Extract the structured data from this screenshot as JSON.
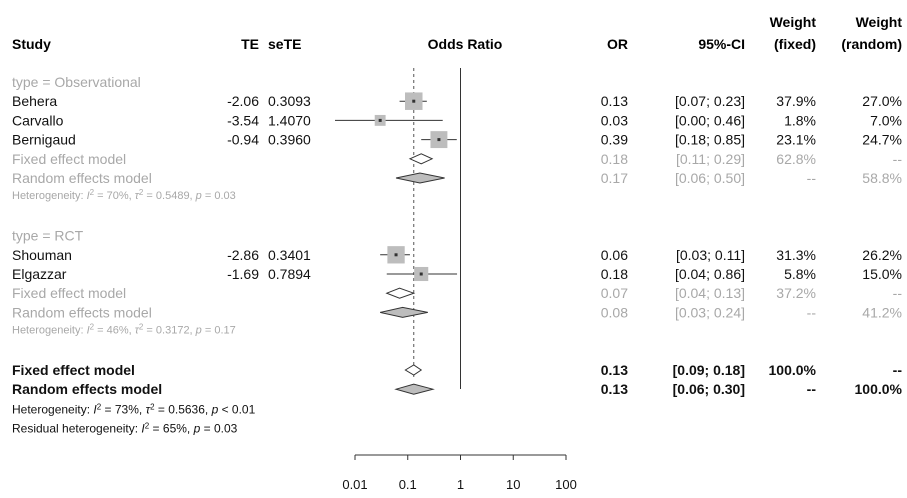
{
  "colors": {
    "main": "#111111",
    "subgroup": "#a8a8a8",
    "box": "#bdbdbd",
    "line": "#333333"
  },
  "header": {
    "study": "Study",
    "te": "TE",
    "sete": "seTE",
    "effect": "Odds Ratio",
    "or": "OR",
    "ci": "95%-CI",
    "weight_fixed": [
      "Weight",
      "(fixed)"
    ],
    "weight_random": [
      "Weight",
      "(random)"
    ]
  },
  "chart_data": {
    "type": "forest",
    "xlabel": "Odds Ratio",
    "x_scale": "log",
    "x_ticks": [
      "0.01",
      "0.1",
      "1",
      "10",
      "100"
    ],
    "x_tick_values": [
      0.01,
      0.1,
      1,
      10,
      100
    ],
    "x_range": [
      0.01,
      100
    ],
    "null_line": 1,
    "pooled_line": 0.13,
    "rows": [
      {
        "kind": "group",
        "label": "type = Observational"
      },
      {
        "kind": "study",
        "label": "Behera",
        "te": "-2.06",
        "sete": "0.3093",
        "or": 0.13,
        "lo": 0.07,
        "hi": 0.23,
        "or_text": "0.13",
        "ci_text": "[0.07; 0.23]",
        "wf": "37.9%",
        "wr": "27.0%",
        "weight": 27.0
      },
      {
        "kind": "study",
        "label": "Carvallo",
        "te": "-3.54",
        "sete": "1.4070",
        "or": 0.03,
        "lo": 0.002,
        "hi": 0.46,
        "or_text": "0.03",
        "ci_text": "[0.00; 0.46]",
        "wf": "1.8%",
        "wr": "7.0%",
        "weight": 7.0
      },
      {
        "kind": "study",
        "label": "Bernigaud",
        "te": "-0.94",
        "sete": "0.3960",
        "or": 0.39,
        "lo": 0.18,
        "hi": 0.85,
        "or_text": "0.39",
        "ci_text": "[0.18; 0.85]",
        "wf": "23.1%",
        "wr": "24.7%",
        "weight": 24.7
      },
      {
        "kind": "sub-fixed",
        "label": "Fixed effect model",
        "or": 0.18,
        "lo": 0.11,
        "hi": 0.29,
        "or_text": "0.18",
        "ci_text": "[0.11; 0.29]",
        "wf": "62.8%",
        "wr": "--"
      },
      {
        "kind": "sub-random",
        "label": "Random effects model",
        "or": 0.17,
        "lo": 0.06,
        "hi": 0.5,
        "or_text": "0.17",
        "ci_text": "[0.06; 0.50]",
        "wf": "--",
        "wr": "58.8%"
      },
      {
        "kind": "het",
        "prefix": "Heterogeneity: ",
        "i2": "I",
        "i2_rest": " = 70%, ",
        "tau": "τ",
        "tau_rest": " = 0.5489, ",
        "p": "p",
        "p_rest": " = 0.03"
      },
      {
        "kind": "blank"
      },
      {
        "kind": "group",
        "label": "type = RCT"
      },
      {
        "kind": "study",
        "label": "Shouman",
        "te": "-2.86",
        "sete": "0.3401",
        "or": 0.06,
        "lo": 0.03,
        "hi": 0.11,
        "or_text": "0.06",
        "ci_text": "[0.03; 0.11]",
        "wf": "31.3%",
        "wr": "26.2%",
        "weight": 26.2
      },
      {
        "kind": "study",
        "label": "Elgazzar",
        "te": "-1.69",
        "sete": "0.7894",
        "or": 0.18,
        "lo": 0.04,
        "hi": 0.86,
        "or_text": "0.18",
        "ci_text": "[0.04; 0.86]",
        "wf": "5.8%",
        "wr": "15.0%",
        "weight": 15.0
      },
      {
        "kind": "sub-fixed",
        "label": "Fixed effect model",
        "or": 0.07,
        "lo": 0.04,
        "hi": 0.13,
        "or_text": "0.07",
        "ci_text": "[0.04; 0.13]",
        "wf": "37.2%",
        "wr": "--"
      },
      {
        "kind": "sub-random",
        "label": "Random effects model",
        "or": 0.08,
        "lo": 0.03,
        "hi": 0.24,
        "or_text": "0.08",
        "ci_text": "[0.03; 0.24]",
        "wf": "--",
        "wr": "41.2%"
      },
      {
        "kind": "het",
        "prefix": "Heterogeneity: ",
        "i2": "I",
        "i2_rest": " = 46%, ",
        "tau": "τ",
        "tau_rest": " = 0.3172, ",
        "p": "p",
        "p_rest": " = 0.17"
      },
      {
        "kind": "blank"
      },
      {
        "kind": "overall-fixed",
        "label": "Fixed effect model",
        "or": 0.13,
        "lo": 0.09,
        "hi": 0.18,
        "or_text": "0.13",
        "ci_text": "[0.09; 0.18]",
        "wf": "100.0%",
        "wr": "--"
      },
      {
        "kind": "overall-random",
        "label": "Random effects model",
        "or": 0.13,
        "lo": 0.06,
        "hi": 0.3,
        "or_text": "0.13",
        "ci_text": "[0.06; 0.30]",
        "wf": "--",
        "wr": "100.0%"
      },
      {
        "kind": "het-main",
        "prefix": "Heterogeneity: ",
        "i2": "I",
        "i2_rest": " = 73%, ",
        "tau": "τ",
        "tau_rest": " = 0.5636, ",
        "p": "p",
        "p_rest": " < 0.01"
      },
      {
        "kind": "het-main",
        "prefix": "Residual heterogeneity: ",
        "i2": "I",
        "i2_rest": " = 65%, ",
        "p": "p",
        "p_rest": " = 0.03"
      }
    ]
  }
}
